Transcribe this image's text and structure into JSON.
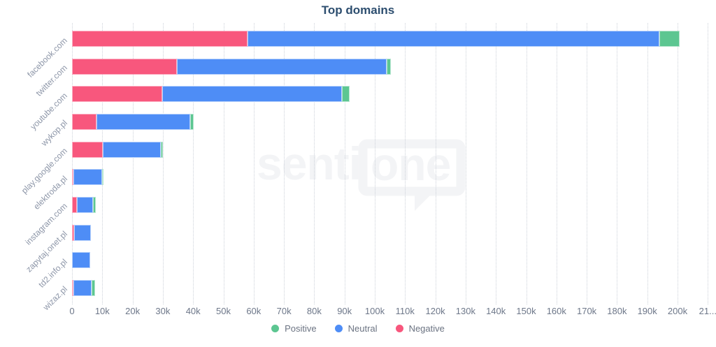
{
  "title": "Top domains",
  "watermark": {
    "brand_left": "senti",
    "brand_right": "one"
  },
  "colors": {
    "positive": "#5cc691",
    "neutral": "#4e8df6",
    "negative": "#f8577d",
    "positive_border": "#b7e5cf",
    "neutral_border": "#b5d0fb",
    "negative_border": "#fcaec2"
  },
  "legend": [
    {
      "label": "Positive",
      "key": "positive"
    },
    {
      "label": "Neutral",
      "key": "neutral"
    },
    {
      "label": "Negative",
      "key": "negative"
    }
  ],
  "x_axis": {
    "tick_values": [
      0,
      10000,
      20000,
      30000,
      40000,
      50000,
      60000,
      70000,
      80000,
      90000,
      100000,
      110000,
      120000,
      130000,
      140000,
      150000,
      160000,
      170000,
      180000,
      190000,
      200000,
      210000
    ],
    "tick_labels": [
      "0",
      "10k",
      "20k",
      "30k",
      "40k",
      "50k",
      "60k",
      "70k",
      "80k",
      "90k",
      "100k",
      "110k",
      "120k",
      "130k",
      "140k",
      "150k",
      "160k",
      "170k",
      "180k",
      "190k",
      "200k",
      "21..."
    ]
  },
  "chart_data": {
    "type": "bar",
    "orientation": "horizontal",
    "stacked": true,
    "title": "Top domains",
    "categories": [
      "facebook.com",
      "twitter.com",
      "youtube.com",
      "wykop.pl",
      "play.google.com",
      "elektroda.pl",
      "instagram.com",
      "zapytaj.onet.pl",
      "td2.info.pl",
      "wizaz.pl"
    ],
    "series": [
      {
        "name": "Negative",
        "color_key": "negative",
        "values": [
          58000,
          34700,
          29700,
          8100,
          10100,
          300,
          1500,
          600,
          0,
          500
        ]
      },
      {
        "name": "Neutral",
        "color_key": "neutral",
        "values": [
          136000,
          69300,
          59500,
          31000,
          19200,
          9500,
          5400,
          5600,
          6100,
          5900
        ]
      },
      {
        "name": "Positive",
        "color_key": "positive",
        "values": [
          6800,
          1300,
          2600,
          1000,
          700,
          300,
          900,
          0,
          0,
          1300
        ]
      }
    ],
    "xlim": [
      0,
      210000
    ],
    "grid": "dotted-vertical",
    "legend_position": "bottom"
  }
}
